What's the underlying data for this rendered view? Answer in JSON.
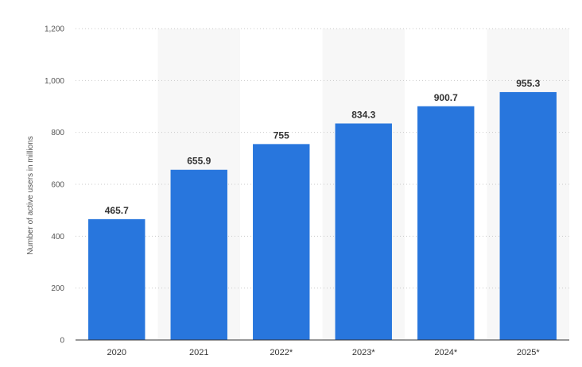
{
  "chart_data": {
    "type": "bar",
    "title": "",
    "xlabel": "",
    "ylabel": "Number of active users in millions",
    "categories": [
      "2020",
      "2021",
      "2022*",
      "2023*",
      "2024*",
      "2025*"
    ],
    "values": [
      465.7,
      655.9,
      755,
      834.3,
      900.7,
      955.3
    ],
    "value_labels": [
      "465.7",
      "655.9",
      "755",
      "834.3",
      "900.7",
      "955.3"
    ],
    "ylim": [
      0,
      1200
    ],
    "y_ticks": [
      0,
      200,
      400,
      600,
      800,
      1000,
      1200
    ],
    "y_tick_labels": [
      "0",
      "200",
      "400",
      "600",
      "800",
      "1,000",
      "1,200"
    ],
    "grid": true,
    "legend": "none",
    "colors": {
      "bar": "#2876dd",
      "band": "#f7f7f7"
    }
  }
}
